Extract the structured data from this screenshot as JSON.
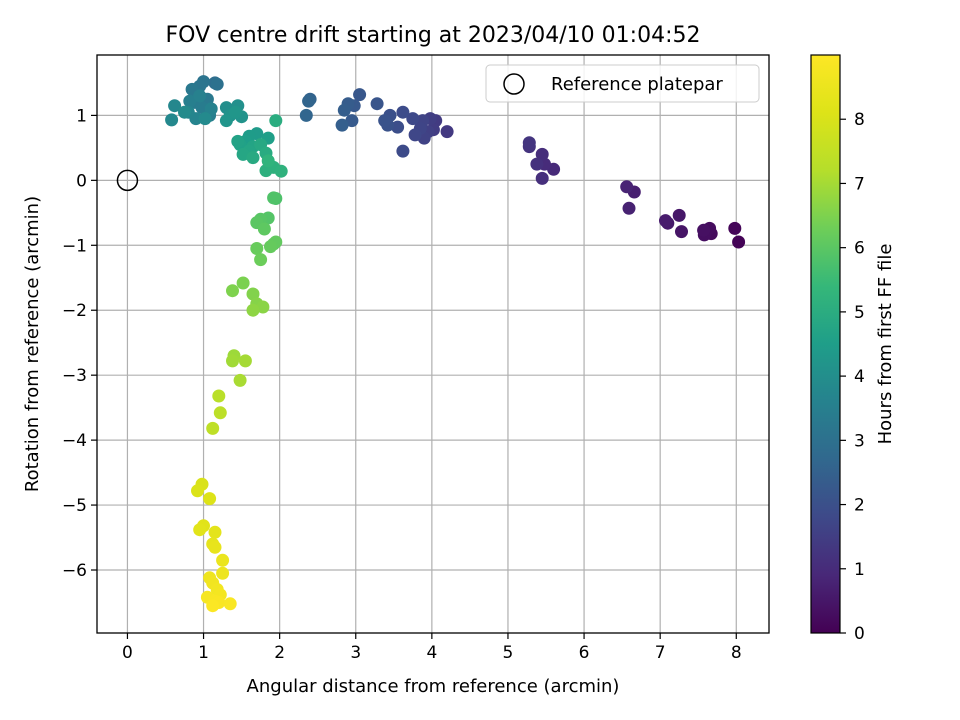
{
  "chart_data": {
    "type": "scatter",
    "title": "FOV centre drift starting at 2023/04/10 01:04:52",
    "xlabel": "Angular distance from reference (arcmin)",
    "ylabel": "Rotation from reference (arcmin)",
    "xlim": [
      -0.4,
      8.43
    ],
    "ylim": [
      -6.97,
      1.93
    ],
    "xticks": [
      0,
      1,
      2,
      3,
      4,
      5,
      6,
      7,
      8
    ],
    "yticks": [
      -6,
      -5,
      -4,
      -3,
      -2,
      -1,
      0,
      1
    ],
    "grid": true,
    "legend": {
      "placement": "top-right",
      "entries": [
        "Reference platepar"
      ]
    },
    "reference_point": {
      "name": "Reference platepar",
      "x": 0,
      "y": 0
    },
    "colorbar": {
      "label": "Hours from first FF file",
      "range": [
        0,
        9
      ],
      "ticks": [
        0,
        1,
        2,
        3,
        4,
        5,
        6,
        7,
        8
      ],
      "colormap": "viridis"
    },
    "points": [
      {
        "x": 8.03,
        "y": -0.95,
        "c": 0.05
      },
      {
        "x": 7.98,
        "y": -0.74,
        "c": 0.1
      },
      {
        "x": 7.67,
        "y": -0.82,
        "c": 0.2
      },
      {
        "x": 7.65,
        "y": -0.74,
        "c": 0.25
      },
      {
        "x": 7.58,
        "y": -0.84,
        "c": 0.3
      },
      {
        "x": 7.57,
        "y": -0.77,
        "c": 0.35
      },
      {
        "x": 7.28,
        "y": -0.79,
        "c": 0.45
      },
      {
        "x": 7.25,
        "y": -0.54,
        "c": 0.5
      },
      {
        "x": 7.1,
        "y": -0.66,
        "c": 0.55
      },
      {
        "x": 7.07,
        "y": -0.62,
        "c": 0.6
      },
      {
        "x": 6.66,
        "y": -0.18,
        "c": 0.7
      },
      {
        "x": 6.59,
        "y": -0.43,
        "c": 0.75
      },
      {
        "x": 6.56,
        "y": -0.1,
        "c": 0.8
      },
      {
        "x": 5.6,
        "y": 0.17,
        "c": 0.95
      },
      {
        "x": 5.48,
        "y": 0.25,
        "c": 1.0
      },
      {
        "x": 5.45,
        "y": 0.4,
        "c": 1.05
      },
      {
        "x": 5.45,
        "y": 0.03,
        "c": 1.1
      },
      {
        "x": 5.38,
        "y": 0.25,
        "c": 1.15
      },
      {
        "x": 5.28,
        "y": 0.52,
        "c": 1.2
      },
      {
        "x": 5.28,
        "y": 0.58,
        "c": 1.25
      },
      {
        "x": 4.2,
        "y": 0.75,
        "c": 1.35
      },
      {
        "x": 4.05,
        "y": 0.92,
        "c": 1.4
      },
      {
        "x": 4.02,
        "y": 0.78,
        "c": 1.45
      },
      {
        "x": 3.98,
        "y": 0.95,
        "c": 1.5
      },
      {
        "x": 3.95,
        "y": 0.75,
        "c": 1.55
      },
      {
        "x": 3.9,
        "y": 0.65,
        "c": 1.6
      },
      {
        "x": 3.88,
        "y": 0.92,
        "c": 1.65
      },
      {
        "x": 3.85,
        "y": 0.8,
        "c": 1.7
      },
      {
        "x": 3.78,
        "y": 0.7,
        "c": 1.75
      },
      {
        "x": 3.75,
        "y": 0.95,
        "c": 1.8
      },
      {
        "x": 3.62,
        "y": 0.45,
        "c": 1.85
      },
      {
        "x": 3.62,
        "y": 1.05,
        "c": 1.9
      },
      {
        "x": 3.55,
        "y": 0.82,
        "c": 1.95
      },
      {
        "x": 3.45,
        "y": 1.0,
        "c": 2.0
      },
      {
        "x": 3.42,
        "y": 0.85,
        "c": 2.05
      },
      {
        "x": 3.38,
        "y": 0.92,
        "c": 2.1
      },
      {
        "x": 3.28,
        "y": 1.18,
        "c": 2.15
      },
      {
        "x": 3.05,
        "y": 1.32,
        "c": 2.2
      },
      {
        "x": 2.98,
        "y": 1.15,
        "c": 2.25
      },
      {
        "x": 2.95,
        "y": 0.92,
        "c": 2.3
      },
      {
        "x": 2.9,
        "y": 1.18,
        "c": 2.35
      },
      {
        "x": 2.85,
        "y": 1.08,
        "c": 2.4
      },
      {
        "x": 2.82,
        "y": 0.85,
        "c": 2.45
      },
      {
        "x": 2.4,
        "y": 1.25,
        "c": 2.55
      },
      {
        "x": 2.38,
        "y": 1.22,
        "c": 2.6
      },
      {
        "x": 2.35,
        "y": 1.0,
        "c": 2.65
      },
      {
        "x": 1.15,
        "y": 1.5,
        "c": 2.9
      },
      {
        "x": 1.18,
        "y": 1.48,
        "c": 3.0
      },
      {
        "x": 1.0,
        "y": 1.52,
        "c": 3.1
      },
      {
        "x": 0.95,
        "y": 1.45,
        "c": 3.15
      },
      {
        "x": 0.92,
        "y": 1.35,
        "c": 3.2
      },
      {
        "x": 0.85,
        "y": 1.4,
        "c": 3.25
      },
      {
        "x": 1.05,
        "y": 1.25,
        "c": 3.3
      },
      {
        "x": 0.88,
        "y": 1.2,
        "c": 3.35
      },
      {
        "x": 0.98,
        "y": 1.12,
        "c": 3.4
      },
      {
        "x": 1.08,
        "y": 1.0,
        "c": 3.45
      },
      {
        "x": 0.82,
        "y": 1.22,
        "c": 3.5
      },
      {
        "x": 0.95,
        "y": 1.3,
        "c": 3.55
      },
      {
        "x": 1.1,
        "y": 1.1,
        "c": 3.6
      },
      {
        "x": 0.9,
        "y": 0.95,
        "c": 3.65
      },
      {
        "x": 0.8,
        "y": 1.05,
        "c": 3.7
      },
      {
        "x": 0.62,
        "y": 1.15,
        "c": 3.75
      },
      {
        "x": 0.58,
        "y": 0.93,
        "c": 3.8
      },
      {
        "x": 1.02,
        "y": 0.95,
        "c": 3.85
      },
      {
        "x": 0.75,
        "y": 1.05,
        "c": 3.9
      },
      {
        "x": 1.3,
        "y": 1.12,
        "c": 4.0
      },
      {
        "x": 1.45,
        "y": 1.15,
        "c": 4.05
      },
      {
        "x": 1.35,
        "y": 1.0,
        "c": 4.1
      },
      {
        "x": 1.5,
        "y": 0.98,
        "c": 4.15
      },
      {
        "x": 1.3,
        "y": 0.92,
        "c": 4.2
      },
      {
        "x": 1.42,
        "y": 1.05,
        "c": 4.25
      },
      {
        "x": 1.7,
        "y": 0.72,
        "c": 4.4
      },
      {
        "x": 1.6,
        "y": 0.68,
        "c": 4.45
      },
      {
        "x": 1.55,
        "y": 0.6,
        "c": 4.5
      },
      {
        "x": 1.85,
        "y": 0.65,
        "c": 4.55
      },
      {
        "x": 1.48,
        "y": 0.55,
        "c": 4.6
      },
      {
        "x": 1.45,
        "y": 0.6,
        "c": 4.65
      },
      {
        "x": 1.65,
        "y": 0.52,
        "c": 4.7
      },
      {
        "x": 1.6,
        "y": 0.45,
        "c": 4.75
      },
      {
        "x": 1.52,
        "y": 0.4,
        "c": 4.8
      },
      {
        "x": 1.75,
        "y": 0.55,
        "c": 4.85
      },
      {
        "x": 1.65,
        "y": 0.35,
        "c": 4.9
      },
      {
        "x": 1.82,
        "y": 0.42,
        "c": 4.95
      },
      {
        "x": 1.95,
        "y": 0.92,
        "c": 5.0
      },
      {
        "x": 1.82,
        "y": 0.15,
        "c": 5.1
      },
      {
        "x": 1.92,
        "y": 0.2,
        "c": 5.15
      },
      {
        "x": 2.02,
        "y": 0.14,
        "c": 5.2
      },
      {
        "x": 1.85,
        "y": 0.3,
        "c": 5.25
      },
      {
        "x": 1.95,
        "y": -0.28,
        "c": 5.8
      },
      {
        "x": 1.92,
        "y": -0.27,
        "c": 5.85
      },
      {
        "x": 1.85,
        "y": -0.58,
        "c": 5.9
      },
      {
        "x": 1.75,
        "y": -0.6,
        "c": 5.95
      },
      {
        "x": 1.7,
        "y": -0.65,
        "c": 6.0
      },
      {
        "x": 1.8,
        "y": -0.75,
        "c": 6.05
      },
      {
        "x": 1.92,
        "y": -0.98,
        "c": 6.1
      },
      {
        "x": 1.95,
        "y": -0.95,
        "c": 6.12
      },
      {
        "x": 1.88,
        "y": -1.02,
        "c": 6.15
      },
      {
        "x": 1.7,
        "y": -1.05,
        "c": 6.2
      },
      {
        "x": 1.75,
        "y": -1.22,
        "c": 6.25
      },
      {
        "x": 1.52,
        "y": -1.58,
        "c": 6.45
      },
      {
        "x": 1.38,
        "y": -1.7,
        "c": 6.5
      },
      {
        "x": 1.65,
        "y": -1.75,
        "c": 6.55
      },
      {
        "x": 1.7,
        "y": -1.9,
        "c": 6.6
      },
      {
        "x": 1.78,
        "y": -1.95,
        "c": 6.65
      },
      {
        "x": 1.65,
        "y": -2.0,
        "c": 6.7
      },
      {
        "x": 1.4,
        "y": -2.7,
        "c": 6.9
      },
      {
        "x": 1.38,
        "y": -2.78,
        "c": 6.95
      },
      {
        "x": 1.55,
        "y": -2.78,
        "c": 7.0
      },
      {
        "x": 1.48,
        "y": -3.08,
        "c": 7.05
      },
      {
        "x": 1.2,
        "y": -3.32,
        "c": 7.3
      },
      {
        "x": 1.22,
        "y": -3.58,
        "c": 7.35
      },
      {
        "x": 1.12,
        "y": -3.82,
        "c": 7.4
      },
      {
        "x": 0.98,
        "y": -4.68,
        "c": 8.0
      },
      {
        "x": 0.92,
        "y": -4.78,
        "c": 8.05
      },
      {
        "x": 1.08,
        "y": -4.9,
        "c": 8.1
      },
      {
        "x": 1.0,
        "y": -5.32,
        "c": 8.2
      },
      {
        "x": 0.95,
        "y": -5.38,
        "c": 8.25
      },
      {
        "x": 1.15,
        "y": -5.42,
        "c": 8.3
      },
      {
        "x": 1.12,
        "y": -5.6,
        "c": 8.35
      },
      {
        "x": 1.15,
        "y": -5.65,
        "c": 8.4
      },
      {
        "x": 1.25,
        "y": -5.85,
        "c": 8.5
      },
      {
        "x": 1.25,
        "y": -6.05,
        "c": 8.55
      },
      {
        "x": 1.08,
        "y": -6.12,
        "c": 8.6
      },
      {
        "x": 1.12,
        "y": -6.2,
        "c": 8.65
      },
      {
        "x": 1.18,
        "y": -6.3,
        "c": 8.7
      },
      {
        "x": 1.22,
        "y": -6.38,
        "c": 8.75
      },
      {
        "x": 1.05,
        "y": -6.42,
        "c": 8.8
      },
      {
        "x": 1.15,
        "y": -6.48,
        "c": 8.85
      },
      {
        "x": 1.2,
        "y": -6.5,
        "c": 8.88
      },
      {
        "x": 1.35,
        "y": -6.52,
        "c": 8.9
      },
      {
        "x": 1.12,
        "y": -6.55,
        "c": 8.95
      }
    ]
  }
}
